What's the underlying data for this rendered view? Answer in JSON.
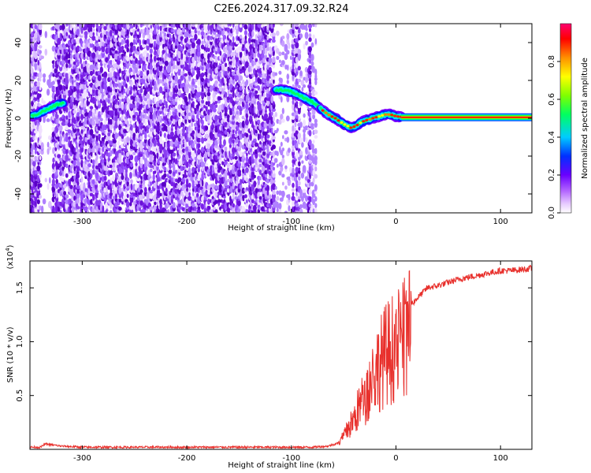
{
  "title": "C2E6.2024.317.09.32.R24",
  "chart_data": [
    {
      "type": "heatmap",
      "title": "C2E6.2024.317.09.32.R24",
      "xlabel": "Height of straight line (km)",
      "ylabel": "Frequency (Hz)",
      "xlim": [
        -350,
        130
      ],
      "ylim": [
        -50,
        50
      ],
      "xticks": [
        -300,
        -200,
        -100,
        0,
        100
      ],
      "yticks": [
        -40,
        -20,
        0,
        20,
        40
      ],
      "colorbar": {
        "label": "Normalized spectral amplitude",
        "range": [
          0,
          1
        ],
        "ticks": [
          0.0,
          0.2,
          0.4,
          0.6,
          0.8
        ],
        "colors": [
          "#ffffff",
          "#c080ff",
          "#7a00ff",
          "#0000ff",
          "#00ffff",
          "#00ff00",
          "#ffff00",
          "#ff8000",
          "#ff0000",
          "#ff0080"
        ]
      },
      "noise_region_km": [
        -350,
        -75
      ],
      "signal_track": {
        "x": [
          -348,
          -340,
          -332,
          -325,
          -318,
          -115,
          -108,
          -100,
          -92,
          -85,
          -78,
          -72,
          -65,
          -58,
          -50,
          -43,
          -38,
          -33,
          -28,
          -22,
          -16,
          -10,
          -5,
          0,
          10,
          30,
          60,
          90,
          130
        ],
        "y": [
          1,
          3,
          5,
          7,
          8,
          15,
          15,
          14,
          12,
          10,
          8,
          5,
          2,
          0,
          -3,
          -5,
          -4,
          -2,
          -1,
          0,
          1,
          2,
          2,
          1,
          0.5,
          0.5,
          0.5,
          0.5,
          0.5
        ]
      },
      "carrier_line_km": [
        5,
        130
      ],
      "carrier_line_hz": 0.5
    },
    {
      "type": "line",
      "xlabel": "Height of straight line (km)",
      "ylabel": "SNR (10 * v/v)",
      "y_multiplier": "(x10^4)",
      "xlim": [
        -350,
        130
      ],
      "ylim": [
        0,
        1.75
      ],
      "xticks": [
        -300,
        -200,
        -100,
        0,
        100
      ],
      "yticks": [
        0.5,
        1.0,
        1.5
      ],
      "color": "#e8302c",
      "series": [
        {
          "x": [
            -350,
            -340,
            -335,
            -320,
            -300,
            -250,
            -200,
            -150,
            -100,
            -80,
            -65,
            -55,
            -50,
            -45,
            -40,
            -35,
            -30,
            -25,
            -20,
            -15,
            -10,
            -5,
            0,
            5,
            10,
            15,
            20,
            25,
            30,
            40,
            50,
            60,
            70,
            80,
            90,
            100,
            110,
            120,
            130
          ],
          "y": [
            0.02,
            0.02,
            0.05,
            0.03,
            0.02,
            0.02,
            0.02,
            0.02,
            0.02,
            0.02,
            0.03,
            0.06,
            0.15,
            0.25,
            0.35,
            0.5,
            0.6,
            0.75,
            0.9,
            1.0,
            1.1,
            1.15,
            1.2,
            1.25,
            1.3,
            1.35,
            1.4,
            1.45,
            1.5,
            1.52,
            1.55,
            1.58,
            1.6,
            1.62,
            1.64,
            1.66,
            1.66,
            1.67,
            1.68
          ]
        }
      ]
    }
  ]
}
